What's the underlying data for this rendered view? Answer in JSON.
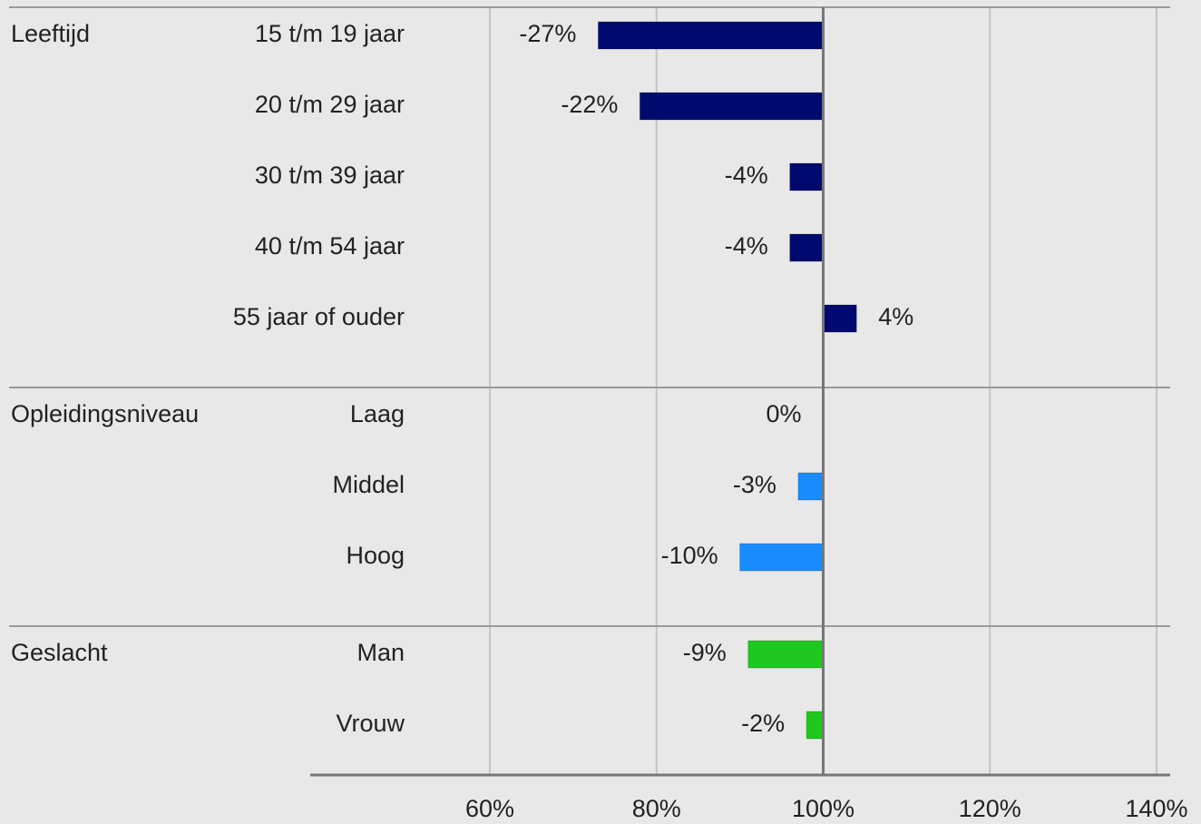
{
  "chart_data": {
    "type": "bar",
    "orientation": "horizontal",
    "baseline": 100,
    "xlim": [
      60,
      140
    ],
    "xticks": [
      {
        "value": 60,
        "label": "60%"
      },
      {
        "value": 80,
        "label": "80%"
      },
      {
        "value": 100,
        "label": "100%"
      },
      {
        "value": 120,
        "label": "120%"
      },
      {
        "value": 140,
        "label": "140%"
      }
    ],
    "grid": true,
    "groups": [
      {
        "name": "Leeftijd",
        "color": "#000a6e",
        "categories": [
          "15 t/m 19 jaar",
          "20 t/m 29 jaar",
          "30 t/m 39 jaar",
          "40 t/m 54 jaar",
          "55 jaar of ouder"
        ],
        "values": [
          -27,
          -22,
          -4,
          -4,
          4
        ],
        "value_labels": [
          "-27%",
          "-22%",
          "-4%",
          "-4%",
          "4%"
        ]
      },
      {
        "name": "Opleidingsniveau",
        "color": "#1a8cff",
        "categories": [
          "Laag",
          "Middel",
          "Hoog"
        ],
        "values": [
          0,
          -3,
          -10
        ],
        "value_labels": [
          "0%",
          "-3%",
          "-10%"
        ]
      },
      {
        "name": "Geslacht",
        "color": "#1ec81e",
        "categories": [
          "Man",
          "Vrouw"
        ],
        "values": [
          -9,
          -2
        ],
        "value_labels": [
          "-9%",
          "-2%"
        ]
      }
    ]
  }
}
